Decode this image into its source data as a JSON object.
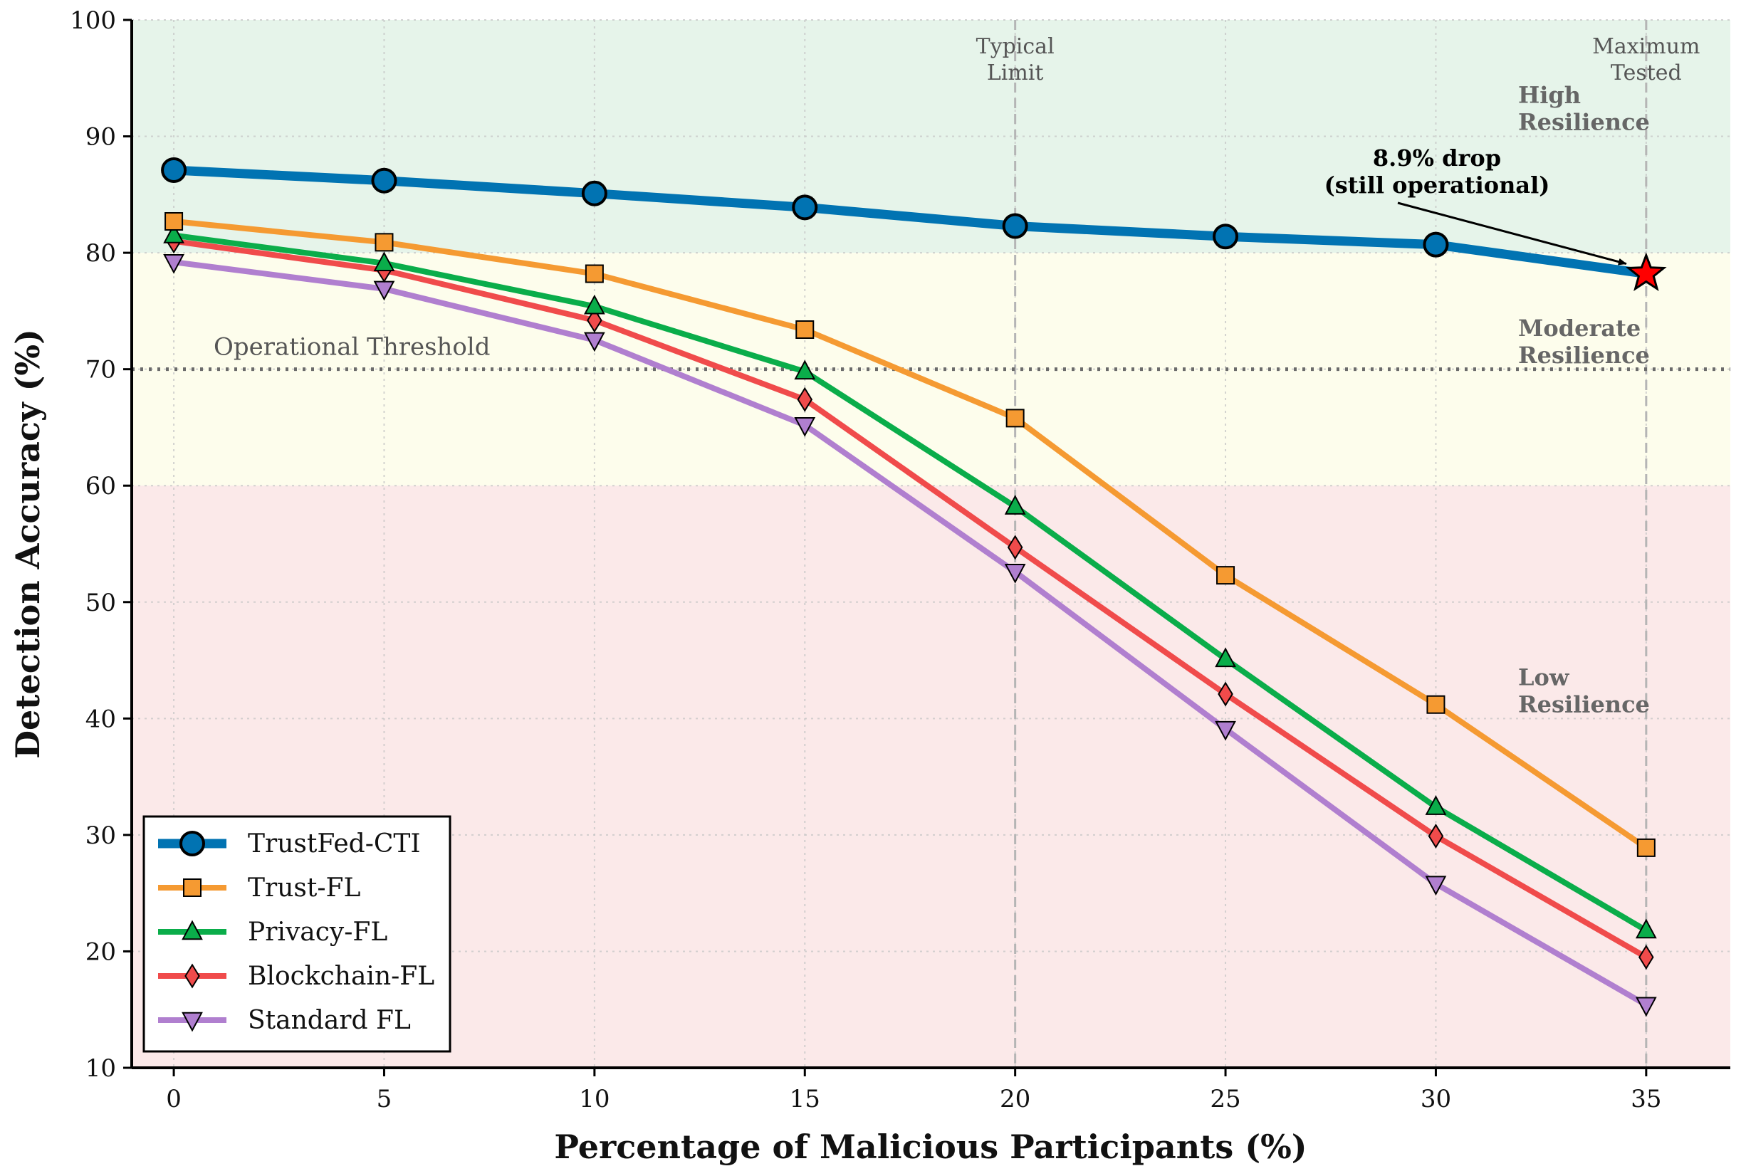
{
  "chart_data": {
    "type": "line",
    "xlabel": "Percentage of Malicious Participants (%)",
    "ylabel": "Detection Accuracy (%)",
    "xlim": [
      -1,
      37
    ],
    "ylim": [
      10,
      100
    ],
    "x": [
      0,
      5,
      10,
      15,
      20,
      25,
      30,
      35
    ],
    "x_ticks": [
      "0",
      "5",
      "10",
      "15",
      "20",
      "25",
      "30",
      "35"
    ],
    "y_ticks": [
      "10",
      "20",
      "30",
      "40",
      "50",
      "60",
      "70",
      "80",
      "90",
      "100"
    ],
    "grid": true,
    "legend_position": "lower-left",
    "series": [
      {
        "name": "TrustFed-CTI",
        "color": "#0173b2",
        "marker": "circle",
        "values": [
          87.1,
          86.2,
          85.1,
          83.9,
          82.3,
          81.4,
          80.7,
          78.2
        ]
      },
      {
        "name": "Trust-FL",
        "color": "#f59a32",
        "marker": "square",
        "values": [
          82.7,
          80.9,
          78.2,
          73.4,
          65.8,
          52.3,
          41.2,
          28.9
        ]
      },
      {
        "name": "Privacy-FL",
        "color": "#0aad4a",
        "marker": "triangle-up",
        "values": [
          81.5,
          79.1,
          75.4,
          69.8,
          58.2,
          45.1,
          32.4,
          21.8
        ]
      },
      {
        "name": "Blockchain-FL",
        "color": "#f04b4b",
        "marker": "diamond",
        "values": [
          81.0,
          78.5,
          74.2,
          67.4,
          54.7,
          42.1,
          29.9,
          19.5
        ]
      },
      {
        "name": "Standard FL",
        "color": "#b07fcf",
        "marker": "triangle-down",
        "values": [
          79.2,
          76.9,
          72.5,
          65.2,
          52.6,
          39.1,
          25.8,
          15.4
        ]
      }
    ],
    "zones": [
      {
        "from": 80,
        "to": 100,
        "color": "#e6f4ea",
        "label": [
          "High",
          "Resilience"
        ],
        "label_y": 92.5
      },
      {
        "from": 60,
        "to": 80,
        "color": "#fdfdec",
        "label": [
          "Moderate",
          "Resilience"
        ],
        "label_y": 72.5
      },
      {
        "from": 10,
        "to": 60,
        "color": "#fbe9e9",
        "label": [
          "Low",
          "Resilience"
        ],
        "label_y": 42.5
      }
    ],
    "threshold": {
      "y": 70,
      "label": "Operational Threshold"
    },
    "reference_lines": [
      {
        "x": 20,
        "label": [
          "Typical",
          "Limit"
        ]
      },
      {
        "x": 35,
        "label": [
          "Maximum",
          "Tested"
        ]
      }
    ],
    "annotation": {
      "x": 35,
      "y": 78.2,
      "label": [
        "8.9% drop",
        "(still operational)"
      ],
      "marker": "star",
      "color": "#ff0000"
    }
  }
}
